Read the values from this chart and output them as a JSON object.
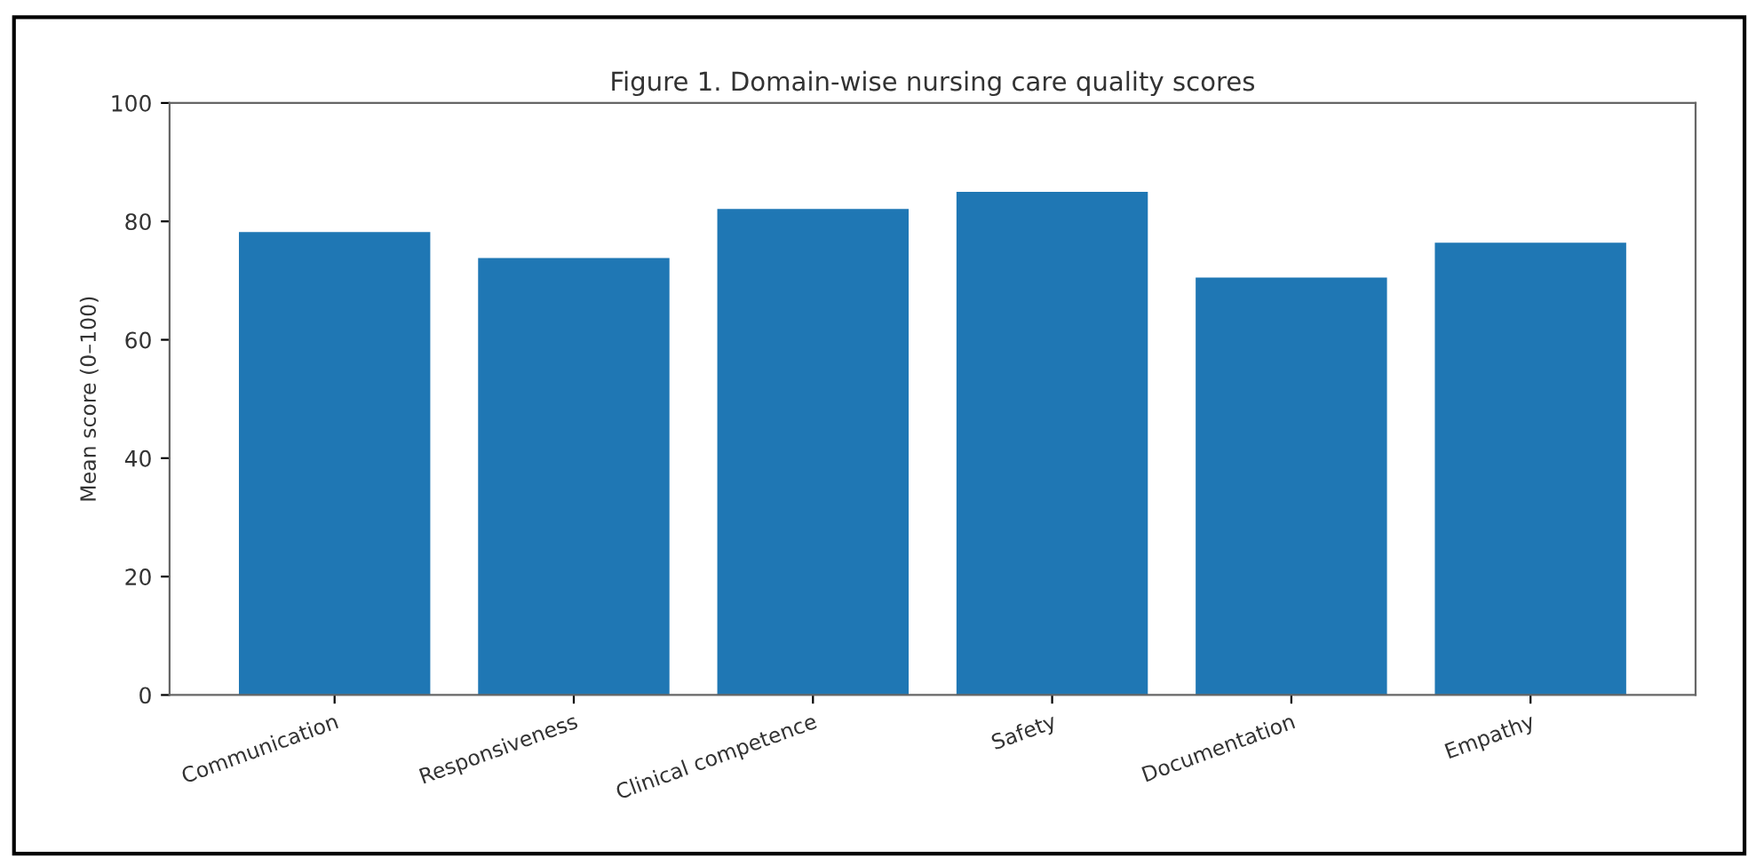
{
  "chart_data": {
    "type": "bar",
    "title": "Figure 1. Domain-wise nursing care quality scores",
    "ylabel": "Mean score (0–100)",
    "categories": [
      "Communication",
      "Responsiveness",
      "Clinical competence",
      "Safety",
      "Documentation",
      "Empathy"
    ],
    "values": [
      78.2,
      73.8,
      82.1,
      85.0,
      70.5,
      76.4
    ],
    "color": "#1f77b4",
    "ylim": [
      0,
      100
    ],
    "yticks": [
      0,
      20,
      40,
      60,
      80,
      100
    ],
    "grid": false
  }
}
